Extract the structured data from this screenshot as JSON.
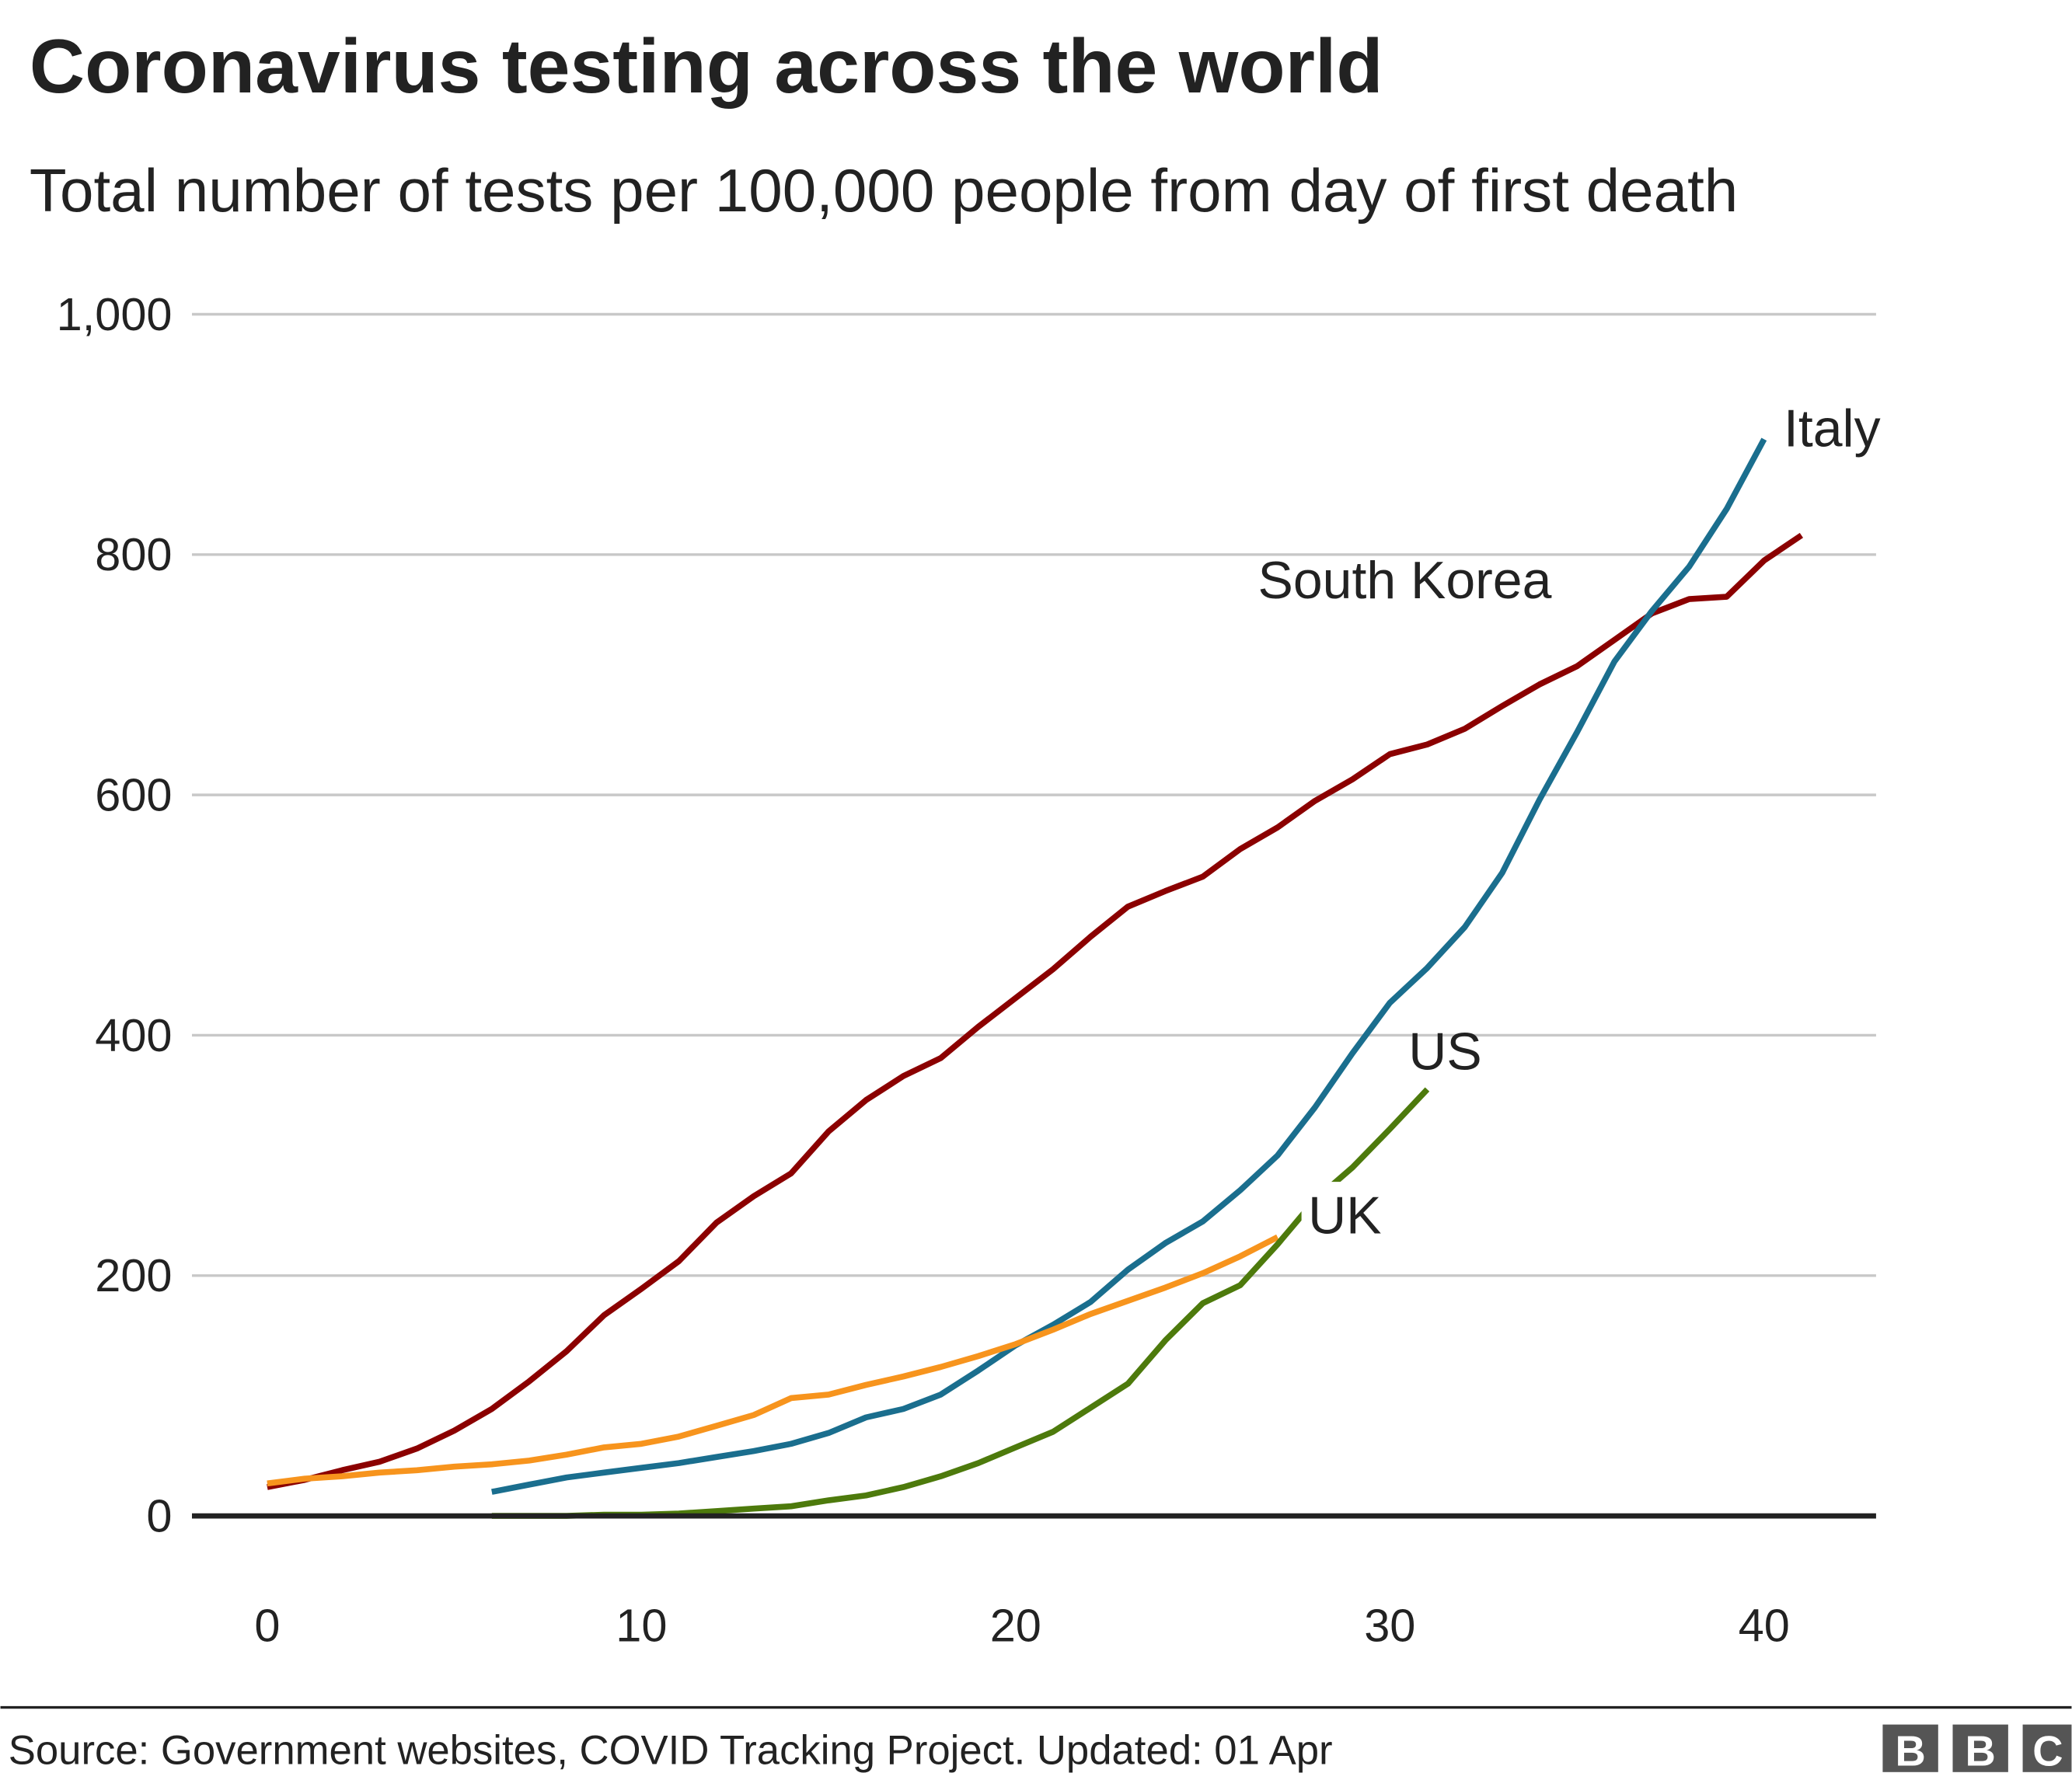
{
  "chart_data": {
    "type": "line",
    "title": "Coronavirus testing across the world",
    "subtitle": "Total number of tests per 100,000 people from day of first death",
    "xlabel": "",
    "ylabel": "",
    "xlim": [
      -2,
      43
    ],
    "ylim": [
      0,
      1000
    ],
    "xticks": [
      0,
      10,
      20,
      30,
      40
    ],
    "xtick_labels": [
      "0",
      "10",
      "20",
      "30",
      "40"
    ],
    "yticks": [
      0,
      200,
      400,
      600,
      800,
      1000
    ],
    "ytick_labels": [
      "0",
      "200",
      "400",
      "600",
      "800",
      "1,000"
    ],
    "grid": true,
    "series": [
      {
        "name": "South Korea",
        "color": "#8b0000",
        "x_start": 0,
        "values": [
          24,
          30,
          38,
          45,
          56,
          71,
          89,
          112,
          137,
          167,
          189,
          212,
          244,
          266,
          285,
          320,
          346,
          366,
          381,
          407,
          431,
          455,
          482,
          507,
          520,
          532,
          555,
          573,
          595,
          613,
          634,
          642,
          655,
          674,
          692,
          707,
          729,
          751,
          763,
          765,
          795,
          816
        ]
      },
      {
        "name": "Italy",
        "color": "#1a6e8e",
        "x_start": 6,
        "values": [
          20,
          26,
          32,
          36,
          40,
          44,
          49,
          54,
          60,
          69,
          82,
          89,
          101,
          121,
          142,
          159,
          178,
          205,
          227,
          245,
          271,
          300,
          340,
          385,
          427,
          456,
          490,
          535,
          596,
          652,
          711,
          753,
          790,
          838,
          896
        ]
      },
      {
        "name": "US",
        "color": "#f7941d",
        "x_start": 0,
        "values": [
          27,
          31,
          33,
          36,
          38,
          41,
          43,
          46,
          51,
          57,
          60,
          66,
          75,
          84,
          98,
          101,
          109,
          116,
          124,
          133,
          143,
          155,
          168,
          179,
          190,
          202,
          216,
          232
        ]
      },
      {
        "name": "UK",
        "color": "#4d7a0c",
        "x_start": 6,
        "values": [
          0,
          0,
          0,
          1,
          1,
          2,
          4,
          6,
          8,
          13,
          17,
          24,
          33,
          44,
          57,
          70,
          90,
          110,
          146,
          177,
          192,
          226,
          263,
          290,
          322,
          355
        ]
      }
    ]
  },
  "labels": {
    "italy": "Italy",
    "south_korea": "South Korea",
    "us": "US",
    "uk": "UK"
  },
  "footer": {
    "source": "Source: Government websites, COVID Tracking Project. Updated: 01 Apr",
    "logo": "BBC"
  }
}
